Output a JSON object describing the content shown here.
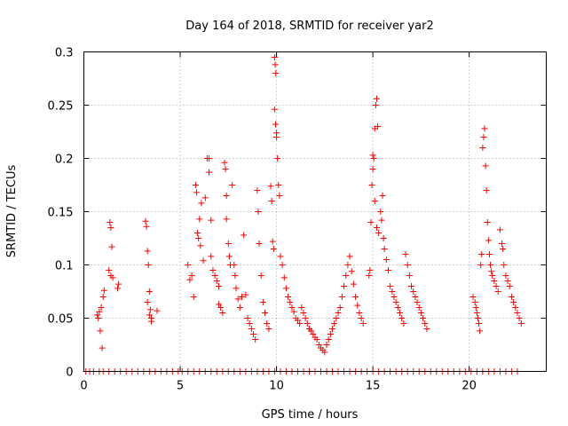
{
  "chart_data": {
    "type": "scatter",
    "title": "Day 164 of 2018, SRMTID for receiver yar2",
    "xlabel": "GPS time / hours",
    "ylabel": "SRMTID / TECUs",
    "xlim": [
      0,
      24
    ],
    "ylim": [
      0,
      0.3
    ],
    "xticks": [
      0,
      5,
      10,
      15,
      20
    ],
    "xtick_labels": [
      "0",
      "5",
      "10",
      "15",
      "20"
    ],
    "yticks": [
      0,
      0.05,
      0.1,
      0.15,
      0.2,
      0.25,
      0.3
    ],
    "ytick_labels": [
      "0",
      "0.05",
      "0.1",
      "0.15",
      "0.2",
      "0.25",
      "0.3"
    ],
    "grid": true,
    "marker": "+",
    "series": [
      {
        "name": "SRMTID",
        "color": "#ff0000",
        "points": [
          [
            0.1,
            0
          ],
          [
            0.3,
            0
          ],
          [
            0.5,
            0
          ],
          [
            0.8,
            0
          ],
          [
            1.0,
            0
          ],
          [
            1.3,
            0
          ],
          [
            1.6,
            0
          ],
          [
            1.9,
            0
          ],
          [
            2.2,
            0
          ],
          [
            2.5,
            0
          ],
          [
            2.8,
            0
          ],
          [
            3.1,
            0
          ],
          [
            3.4,
            0
          ],
          [
            3.7,
            0
          ],
          [
            4.0,
            0
          ],
          [
            4.3,
            0
          ],
          [
            4.6,
            0
          ],
          [
            4.9,
            0
          ],
          [
            5.1,
            0
          ],
          [
            5.4,
            0
          ],
          [
            5.7,
            0
          ],
          [
            6.0,
            0
          ],
          [
            6.3,
            0
          ],
          [
            6.6,
            0
          ],
          [
            6.9,
            0
          ],
          [
            7.2,
            0
          ],
          [
            7.5,
            0
          ],
          [
            7.8,
            0
          ],
          [
            8.1,
            0
          ],
          [
            8.4,
            0
          ],
          [
            8.7,
            0
          ],
          [
            9.0,
            0
          ],
          [
            9.3,
            0
          ],
          [
            9.6,
            0
          ],
          [
            9.9,
            0
          ],
          [
            10.2,
            0
          ],
          [
            10.5,
            0
          ],
          [
            10.8,
            0
          ],
          [
            11.1,
            0
          ],
          [
            11.4,
            0
          ],
          [
            11.7,
            0
          ],
          [
            12.0,
            0
          ],
          [
            12.3,
            0
          ],
          [
            12.6,
            0
          ],
          [
            12.9,
            0
          ],
          [
            13.2,
            0
          ],
          [
            13.5,
            0
          ],
          [
            13.8,
            0
          ],
          [
            14.1,
            0
          ],
          [
            14.4,
            0
          ],
          [
            14.7,
            0
          ],
          [
            15.0,
            0
          ],
          [
            15.3,
            0
          ],
          [
            15.6,
            0
          ],
          [
            15.9,
            0
          ],
          [
            16.2,
            0
          ],
          [
            16.5,
            0
          ],
          [
            16.8,
            0
          ],
          [
            17.1,
            0
          ],
          [
            17.4,
            0
          ],
          [
            17.7,
            0
          ],
          [
            18.0,
            0
          ],
          [
            18.3,
            0
          ],
          [
            18.6,
            0
          ],
          [
            18.9,
            0
          ],
          [
            19.2,
            0
          ],
          [
            19.5,
            0
          ],
          [
            19.8,
            0
          ],
          [
            20.1,
            0
          ],
          [
            20.4,
            0
          ],
          [
            20.7,
            0
          ],
          [
            21.0,
            0
          ],
          [
            21.3,
            0
          ],
          [
            21.6,
            0
          ],
          [
            21.9,
            0
          ],
          [
            22.2,
            0
          ],
          [
            22.5,
            0
          ],
          [
            0.7,
            0.053
          ],
          [
            0.75,
            0.05
          ],
          [
            0.8,
            0.056
          ],
          [
            0.85,
            0.038
          ],
          [
            0.9,
            0.06
          ],
          [
            0.95,
            0.022
          ],
          [
            1.0,
            0.07
          ],
          [
            1.05,
            0.076
          ],
          [
            1.35,
            0.14
          ],
          [
            1.4,
            0.135
          ],
          [
            1.45,
            0.117
          ],
          [
            1.3,
            0.095
          ],
          [
            1.4,
            0.09
          ],
          [
            1.5,
            0.088
          ],
          [
            1.8,
            0.082
          ],
          [
            1.75,
            0.078
          ],
          [
            3.2,
            0.141
          ],
          [
            3.25,
            0.136
          ],
          [
            3.3,
            0.113
          ],
          [
            3.35,
            0.1
          ],
          [
            3.4,
            0.075
          ],
          [
            3.3,
            0.065
          ],
          [
            3.45,
            0.058
          ],
          [
            3.4,
            0.053
          ],
          [
            3.5,
            0.05
          ],
          [
            3.5,
            0.047
          ],
          [
            3.8,
            0.057
          ],
          [
            5.4,
            0.1
          ],
          [
            5.5,
            0.086
          ],
          [
            5.6,
            0.09
          ],
          [
            5.7,
            0.07
          ],
          [
            5.8,
            0.175
          ],
          [
            5.85,
            0.168
          ],
          [
            5.9,
            0.13
          ],
          [
            5.95,
            0.125
          ],
          [
            6.0,
            0.143
          ],
          [
            6.05,
            0.118
          ],
          [
            6.1,
            0.158
          ],
          [
            6.2,
            0.104
          ],
          [
            6.3,
            0.163
          ],
          [
            6.4,
            0.2
          ],
          [
            6.5,
            0.2
          ],
          [
            6.5,
            0.187
          ],
          [
            6.6,
            0.142
          ],
          [
            6.6,
            0.108
          ],
          [
            6.7,
            0.095
          ],
          [
            6.8,
            0.09
          ],
          [
            6.9,
            0.085
          ],
          [
            7.0,
            0.08
          ],
          [
            7.0,
            0.063
          ],
          [
            7.1,
            0.06
          ],
          [
            7.2,
            0.055
          ],
          [
            7.3,
            0.196
          ],
          [
            7.35,
            0.19
          ],
          [
            7.4,
            0.165
          ],
          [
            7.4,
            0.143
          ],
          [
            7.5,
            0.12
          ],
          [
            7.55,
            0.108
          ],
          [
            7.6,
            0.1
          ],
          [
            7.7,
            0.175
          ],
          [
            7.8,
            0.1
          ],
          [
            7.85,
            0.09
          ],
          [
            7.9,
            0.078
          ],
          [
            8.0,
            0.068
          ],
          [
            8.1,
            0.06
          ],
          [
            8.2,
            0.07
          ],
          [
            8.3,
            0.128
          ],
          [
            8.4,
            0.072
          ],
          [
            8.5,
            0.05
          ],
          [
            8.6,
            0.045
          ],
          [
            8.7,
            0.04
          ],
          [
            8.8,
            0.035
          ],
          [
            8.9,
            0.03
          ],
          [
            9.0,
            0.17
          ],
          [
            9.05,
            0.15
          ],
          [
            9.1,
            0.12
          ],
          [
            9.2,
            0.09
          ],
          [
            9.3,
            0.065
          ],
          [
            9.4,
            0.055
          ],
          [
            9.5,
            0.045
          ],
          [
            9.6,
            0.04
          ],
          [
            9.7,
            0.174
          ],
          [
            9.75,
            0.16
          ],
          [
            9.8,
            0.122
          ],
          [
            9.85,
            0.115
          ],
          [
            9.9,
            0.295
          ],
          [
            9.93,
            0.288
          ],
          [
            9.96,
            0.28
          ],
          [
            9.9,
            0.246
          ],
          [
            9.95,
            0.232
          ],
          [
            10.0,
            0.224
          ],
          [
            10.0,
            0.22
          ],
          [
            10.05,
            0.2
          ],
          [
            10.1,
            0.175
          ],
          [
            10.15,
            0.165
          ],
          [
            10.2,
            0.108
          ],
          [
            10.3,
            0.1
          ],
          [
            10.4,
            0.088
          ],
          [
            10.5,
            0.078
          ],
          [
            10.6,
            0.07
          ],
          [
            10.7,
            0.065
          ],
          [
            10.8,
            0.06
          ],
          [
            10.9,
            0.056
          ],
          [
            11.0,
            0.05
          ],
          [
            11.1,
            0.048
          ],
          [
            11.2,
            0.045
          ],
          [
            11.3,
            0.06
          ],
          [
            11.4,
            0.055
          ],
          [
            11.5,
            0.05
          ],
          [
            11.6,
            0.045
          ],
          [
            11.7,
            0.04
          ],
          [
            11.8,
            0.038
          ],
          [
            11.9,
            0.035
          ],
          [
            12.0,
            0.032
          ],
          [
            12.1,
            0.03
          ],
          [
            12.2,
            0.025
          ],
          [
            12.3,
            0.022
          ],
          [
            12.4,
            0.02
          ],
          [
            12.5,
            0.018
          ],
          [
            12.6,
            0.025
          ],
          [
            12.7,
            0.03
          ],
          [
            12.8,
            0.035
          ],
          [
            12.9,
            0.04
          ],
          [
            13.0,
            0.045
          ],
          [
            13.1,
            0.05
          ],
          [
            13.2,
            0.055
          ],
          [
            13.3,
            0.06
          ],
          [
            13.4,
            0.07
          ],
          [
            13.5,
            0.08
          ],
          [
            13.6,
            0.09
          ],
          [
            13.7,
            0.1
          ],
          [
            13.8,
            0.108
          ],
          [
            13.9,
            0.094
          ],
          [
            14.0,
            0.082
          ],
          [
            14.1,
            0.07
          ],
          [
            14.2,
            0.062
          ],
          [
            14.3,
            0.055
          ],
          [
            14.4,
            0.05
          ],
          [
            14.5,
            0.045
          ],
          [
            14.8,
            0.09
          ],
          [
            14.85,
            0.095
          ],
          [
            14.9,
            0.14
          ],
          [
            14.95,
            0.175
          ],
          [
            15.0,
            0.19
          ],
          [
            15.0,
            0.203
          ],
          [
            15.05,
            0.2
          ],
          [
            15.1,
            0.228
          ],
          [
            15.15,
            0.25
          ],
          [
            15.2,
            0.256
          ],
          [
            15.25,
            0.23
          ],
          [
            15.1,
            0.16
          ],
          [
            15.2,
            0.135
          ],
          [
            15.3,
            0.13
          ],
          [
            15.4,
            0.15
          ],
          [
            15.45,
            0.142
          ],
          [
            15.5,
            0.165
          ],
          [
            15.55,
            0.125
          ],
          [
            15.6,
            0.115
          ],
          [
            15.7,
            0.105
          ],
          [
            15.8,
            0.095
          ],
          [
            15.9,
            0.08
          ],
          [
            16.0,
            0.075
          ],
          [
            16.1,
            0.07
          ],
          [
            16.2,
            0.065
          ],
          [
            16.3,
            0.06
          ],
          [
            16.4,
            0.055
          ],
          [
            16.5,
            0.05
          ],
          [
            16.6,
            0.045
          ],
          [
            16.7,
            0.11
          ],
          [
            16.8,
            0.1
          ],
          [
            16.9,
            0.09
          ],
          [
            17.0,
            0.08
          ],
          [
            17.1,
            0.075
          ],
          [
            17.2,
            0.07
          ],
          [
            17.3,
            0.065
          ],
          [
            17.4,
            0.06
          ],
          [
            17.5,
            0.055
          ],
          [
            17.6,
            0.05
          ],
          [
            17.7,
            0.045
          ],
          [
            17.8,
            0.04
          ],
          [
            20.2,
            0.07
          ],
          [
            20.3,
            0.065
          ],
          [
            20.35,
            0.06
          ],
          [
            20.4,
            0.055
          ],
          [
            20.45,
            0.05
          ],
          [
            20.5,
            0.045
          ],
          [
            20.55,
            0.038
          ],
          [
            20.6,
            0.1
          ],
          [
            20.65,
            0.11
          ],
          [
            20.7,
            0.21
          ],
          [
            20.75,
            0.22
          ],
          [
            20.8,
            0.228
          ],
          [
            20.85,
            0.193
          ],
          [
            20.9,
            0.17
          ],
          [
            20.95,
            0.14
          ],
          [
            21.0,
            0.123
          ],
          [
            21.05,
            0.11
          ],
          [
            21.1,
            0.1
          ],
          [
            21.15,
            0.094
          ],
          [
            21.2,
            0.09
          ],
          [
            21.3,
            0.085
          ],
          [
            21.4,
            0.08
          ],
          [
            21.5,
            0.075
          ],
          [
            21.6,
            0.133
          ],
          [
            21.7,
            0.12
          ],
          [
            21.75,
            0.115
          ],
          [
            21.8,
            0.1
          ],
          [
            21.9,
            0.09
          ],
          [
            22.0,
            0.085
          ],
          [
            22.1,
            0.08
          ],
          [
            22.2,
            0.07
          ],
          [
            22.3,
            0.065
          ],
          [
            22.4,
            0.06
          ],
          [
            22.5,
            0.055
          ],
          [
            22.6,
            0.05
          ],
          [
            22.7,
            0.045
          ]
        ]
      }
    ]
  }
}
